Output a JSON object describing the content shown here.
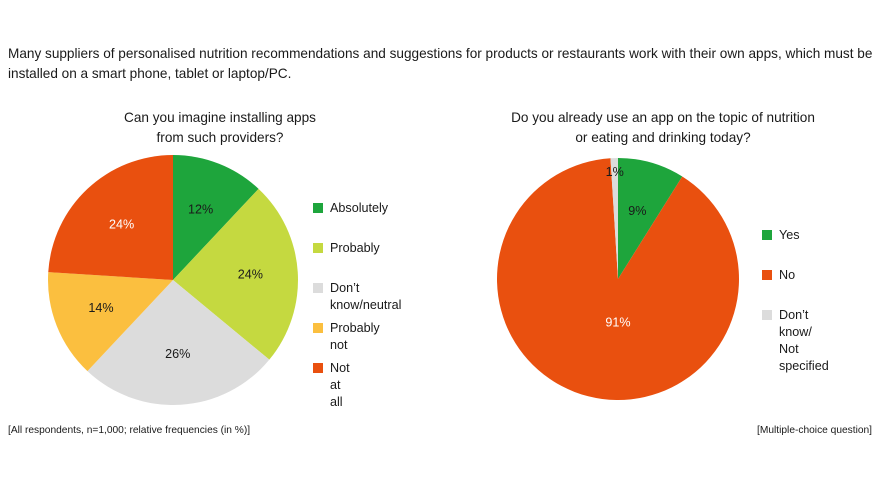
{
  "intro_text": "Many suppliers of personalised nutrition recommendations and suggestions for products or restaurants work with their own apps, which must be installed on a smart phone, tablet or laptop/PC.",
  "footnote_left": "[All respondents, n=1,000; relative frequencies (in %)]",
  "footnote_right": "[Multiple-choice question]",
  "colors": {
    "green": "#1ea53c",
    "lime": "#c5d940",
    "gray": "#dcdcdc",
    "yellow": "#fbbf3f",
    "orange": "#e9500f"
  },
  "chart_data": [
    {
      "type": "pie",
      "title": "Can you imagine installing apps\nfrom such providers?",
      "categories": [
        "Absolutely",
        "Probably",
        "Don’t know/neutral",
        "Probably not",
        "Not at all"
      ],
      "values": [
        12,
        24,
        26,
        14,
        24
      ],
      "labels": [
        "12%",
        "24%",
        "26%",
        "14%",
        "24%"
      ],
      "colors": [
        "#1ea53c",
        "#c5d940",
        "#dcdcdc",
        "#fbbf3f",
        "#e9500f"
      ],
      "label_colors": [
        "#1a1a1a",
        "#1a1a1a",
        "#1a1a1a",
        "#1a1a1a",
        "#ffffff"
      ],
      "legend_position": "right"
    },
    {
      "type": "pie",
      "title": "Do you already use an app on the topic of nutrition\nor eating and drinking today?",
      "categories": [
        "Yes",
        "No",
        "Don’t know/\nNot specified"
      ],
      "values": [
        9,
        91,
        1
      ],
      "labels": [
        "9%",
        "91%",
        "1%"
      ],
      "colors": [
        "#1ea53c",
        "#e9500f",
        "#dcdcdc"
      ],
      "label_colors": [
        "#1a1a1a",
        "#ffffff",
        "#1a1a1a"
      ],
      "legend_position": "right"
    }
  ]
}
